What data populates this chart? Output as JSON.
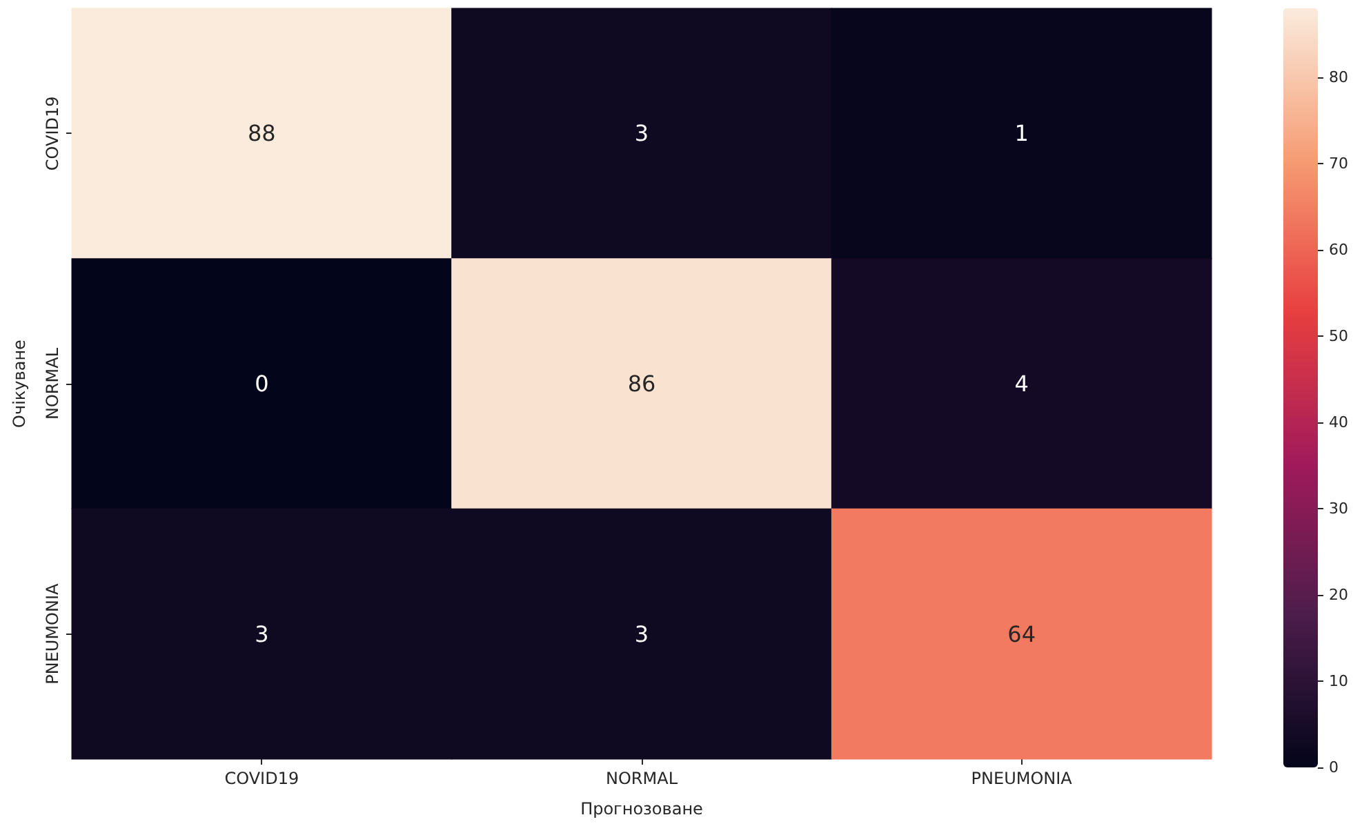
{
  "chart_data": {
    "type": "heatmap",
    "xlabel": "Прогнозоване",
    "ylabel": "Очікуване",
    "categories": [
      "COVID19",
      "NORMAL",
      "PNEUMONIA"
    ],
    "y_categories": [
      "COVID19",
      "NORMAL",
      "PNEUMONIA"
    ],
    "cells": [
      [
        88,
        3,
        1
      ],
      [
        0,
        86,
        4
      ],
      [
        3,
        3,
        64
      ]
    ],
    "clim": [
      0,
      88
    ],
    "cticks": [
      0,
      10,
      20,
      30,
      40,
      50,
      60,
      70,
      80
    ],
    "data_labels": true
  }
}
